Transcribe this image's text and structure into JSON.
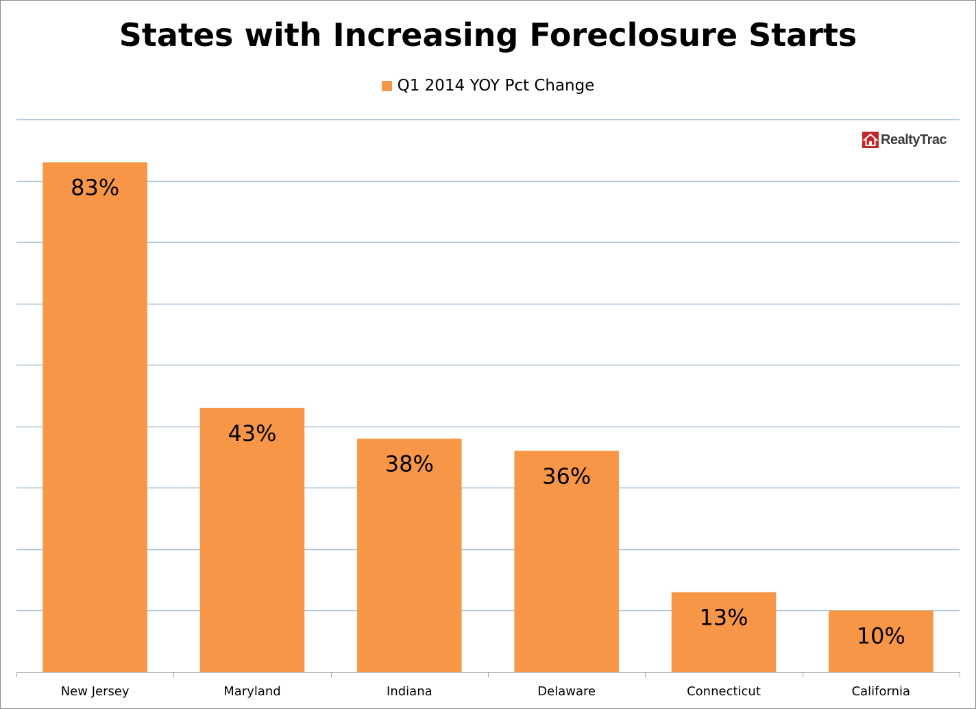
{
  "chart_data": {
    "type": "bar",
    "title": "States with Increasing Foreclosure Starts",
    "categories": [
      "New Jersey",
      "Maryland",
      "Indiana",
      "Delaware",
      "Connecticut",
      "California"
    ],
    "series": [
      {
        "name": "Q1 2014 YOY Pct Change",
        "values": [
          83,
          43,
          38,
          36,
          13,
          10
        ],
        "labels": [
          "83%",
          "43%",
          "38%",
          "36%",
          "13%",
          "10%"
        ],
        "color": "#f79646"
      }
    ],
    "ylim": [
      0,
      90
    ],
    "grid": true,
    "legend_position": "top",
    "xlabel": "",
    "ylabel": ""
  },
  "logo": {
    "text": "RealtyTrac",
    "icon": "house-icon",
    "color": "#c0272d"
  },
  "colors": {
    "gridline": "#a6bfd6",
    "axis": "#a6a6a6",
    "frame": "#8c8c8c"
  }
}
